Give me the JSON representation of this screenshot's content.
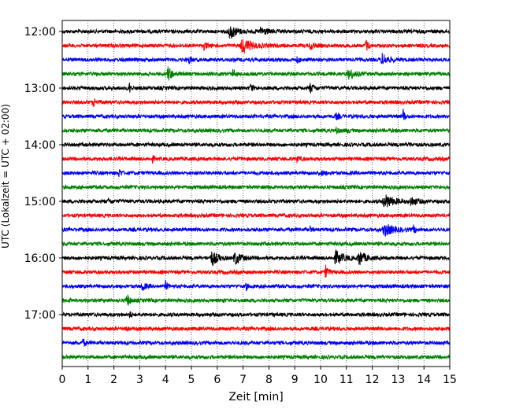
{
  "chart_data": {
    "type": "line",
    "title": "",
    "xlabel": "Zeit  [min]",
    "ylabel": "UTC (Lokalzeit = UTC + 02:00)",
    "xlim": [
      0,
      15
    ],
    "x_ticks": [
      "0",
      "1",
      "2",
      "3",
      "4",
      "5",
      "6",
      "7",
      "8",
      "9",
      "10",
      "11",
      "12",
      "13",
      "14",
      "15"
    ],
    "y_ticks": [
      "12:00",
      "13:00",
      "14:00",
      "15:00",
      "16:00",
      "17:00"
    ],
    "grid": "vertical dotted",
    "trace_interval_min": 15,
    "colors": [
      "#000000",
      "#ff0000",
      "#0000ff",
      "#008000"
    ],
    "series": [
      {
        "start": "12:00",
        "color": "#000000",
        "events": [
          [
            6.5,
            1.0,
            0.35
          ],
          [
            7.7,
            0.6,
            0.3
          ]
        ]
      },
      {
        "start": "12:15",
        "color": "#ff0000",
        "events": [
          [
            5.5,
            0.6,
            0.1
          ],
          [
            7.0,
            1.0,
            0.5
          ],
          [
            9.6,
            0.5,
            0.2
          ],
          [
            11.75,
            1.0,
            0.1
          ]
        ]
      },
      {
        "start": "12:30",
        "color": "#0000ff",
        "events": [
          [
            4.9,
            0.5,
            0.12
          ],
          [
            9.1,
            0.4,
            0.1
          ],
          [
            12.4,
            0.8,
            0.3
          ]
        ]
      },
      {
        "start": "12:45",
        "color": "#008000",
        "events": [
          [
            4.1,
            1.0,
            0.2
          ],
          [
            6.6,
            0.6,
            0.1
          ],
          [
            11.1,
            0.7,
            0.3
          ]
        ]
      },
      {
        "start": "13:00",
        "color": "#000000",
        "events": [
          [
            2.6,
            0.7,
            0.06
          ],
          [
            7.3,
            0.9,
            0.06
          ],
          [
            9.6,
            0.6,
            0.2
          ]
        ]
      },
      {
        "start": "13:15",
        "color": "#ff0000",
        "events": [
          [
            1.2,
            0.6,
            0.15
          ]
        ]
      },
      {
        "start": "13:30",
        "color": "#0000ff",
        "events": [
          [
            10.6,
            0.4,
            0.15
          ],
          [
            13.2,
            1.0,
            0.06
          ]
        ]
      },
      {
        "start": "13:45",
        "color": "#008000",
        "events": [
          [
            10.6,
            0.6,
            0.1
          ],
          [
            11.0,
            0.4,
            0.08
          ]
        ]
      },
      {
        "start": "14:00",
        "color": "#000000",
        "events": [
          [
            13.4,
            0.4,
            0.05
          ]
        ]
      },
      {
        "start": "14:15",
        "color": "#ff0000",
        "events": [
          [
            3.5,
            0.4,
            0.05
          ],
          [
            9.1,
            0.5,
            0.1
          ]
        ]
      },
      {
        "start": "14:30",
        "color": "#0000ff",
        "events": [
          [
            2.2,
            0.7,
            0.08
          ],
          [
            10.0,
            0.3,
            0.2
          ]
        ]
      },
      {
        "start": "14:45",
        "color": "#008000",
        "events": []
      },
      {
        "start": "15:00",
        "color": "#000000",
        "events": [
          [
            1.8,
            0.3,
            0.15
          ],
          [
            12.5,
            0.9,
            0.5
          ],
          [
            13.5,
            0.6,
            0.3
          ]
        ]
      },
      {
        "start": "15:15",
        "color": "#ff0000",
        "events": []
      },
      {
        "start": "15:30",
        "color": "#0000ff",
        "events": [
          [
            9.6,
            0.5,
            0.06
          ],
          [
            12.5,
            0.8,
            0.5
          ],
          [
            13.6,
            0.5,
            0.08
          ]
        ]
      },
      {
        "start": "15:45",
        "color": "#008000",
        "events": []
      },
      {
        "start": "16:00",
        "color": "#000000",
        "events": [
          [
            5.8,
            1.0,
            0.3
          ],
          [
            6.7,
            0.9,
            0.3
          ],
          [
            10.6,
            0.9,
            0.4
          ],
          [
            11.5,
            1.0,
            0.3
          ]
        ]
      },
      {
        "start": "16:15",
        "color": "#ff0000",
        "events": [
          [
            10.2,
            0.9,
            0.12
          ]
        ]
      },
      {
        "start": "16:30",
        "color": "#0000ff",
        "events": [
          [
            3.1,
            0.7,
            0.12
          ],
          [
            4.0,
            0.6,
            0.1
          ],
          [
            7.1,
            0.6,
            0.06
          ]
        ]
      },
      {
        "start": "16:45",
        "color": "#008000",
        "events": [
          [
            0.3,
            0.4,
            0.05
          ],
          [
            2.5,
            1.0,
            0.12
          ],
          [
            6.2,
            0.3,
            0.05
          ]
        ]
      },
      {
        "start": "17:00",
        "color": "#000000",
        "events": [
          [
            2.6,
            0.6,
            0.05
          ]
        ]
      },
      {
        "start": "17:15",
        "color": "#ff0000",
        "events": [
          [
            2.4,
            0.4,
            0.1
          ]
        ]
      },
      {
        "start": "17:30",
        "color": "#0000ff",
        "events": [
          [
            0.8,
            0.6,
            0.1
          ]
        ]
      },
      {
        "start": "17:45",
        "color": "#008000",
        "events": []
      }
    ]
  }
}
